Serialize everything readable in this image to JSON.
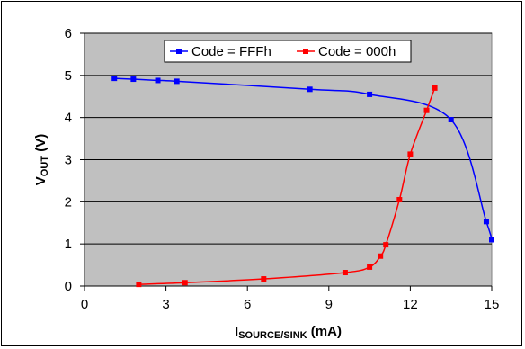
{
  "chart_data": {
    "type": "line",
    "title": "",
    "xlabel_main": "I",
    "xlabel_sub": "SOURCE/SINK",
    "xlabel_unit": " (mA)",
    "ylabel_main": "V",
    "ylabel_sub": "OUT",
    "ylabel_unit": " (V)",
    "xlim": [
      0,
      15
    ],
    "ylim": [
      0,
      6
    ],
    "xticks": [
      0,
      3,
      6,
      9,
      12,
      15
    ],
    "yticks": [
      0,
      1,
      2,
      3,
      4,
      5,
      6
    ],
    "grid": "horizontal",
    "plot_background": "#c0c0c0",
    "legend_position": "top-center",
    "series": [
      {
        "name": "Code = FFFh",
        "color": "#0000ff",
        "points": [
          [
            1.1,
            4.93
          ],
          [
            1.8,
            4.91
          ],
          [
            2.7,
            4.88
          ],
          [
            3.4,
            4.86
          ],
          [
            8.3,
            4.67
          ],
          [
            10.5,
            4.55
          ],
          [
            13.5,
            3.95
          ],
          [
            14.8,
            1.53
          ],
          [
            15.0,
            1.1
          ]
        ]
      },
      {
        "name": "Code = 000h",
        "color": "#ff0000",
        "points": [
          [
            2.0,
            0.04
          ],
          [
            3.7,
            0.08
          ],
          [
            6.6,
            0.17
          ],
          [
            9.6,
            0.32
          ],
          [
            10.5,
            0.45
          ],
          [
            10.9,
            0.71
          ],
          [
            11.1,
            0.98
          ],
          [
            11.6,
            2.05
          ],
          [
            12.0,
            3.13
          ],
          [
            12.6,
            4.17
          ],
          [
            12.9,
            4.7
          ]
        ]
      }
    ]
  }
}
